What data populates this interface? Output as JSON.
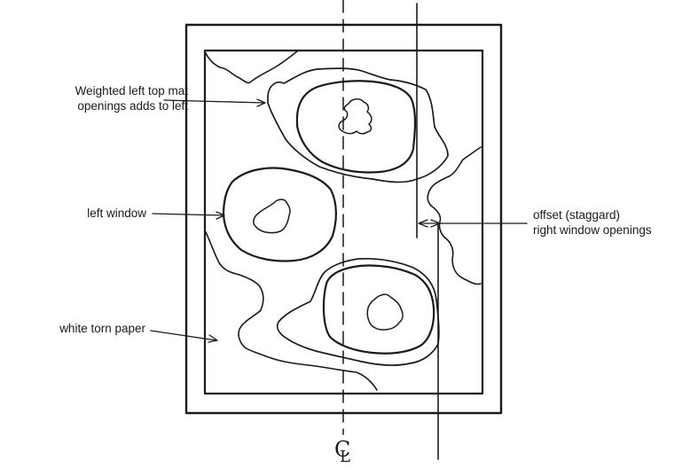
{
  "labels": {
    "weighted": "Weighted left top mat\nopenings adds to left",
    "left_window": "left window",
    "white_torn": "white torn paper",
    "offset": "offset (staggard)\nright window openings"
  },
  "centerline": {
    "symbol_c": "C",
    "symbol_l": "L"
  },
  "colors": {
    "ink": "#1a1a1a",
    "background": "#ffffff"
  }
}
